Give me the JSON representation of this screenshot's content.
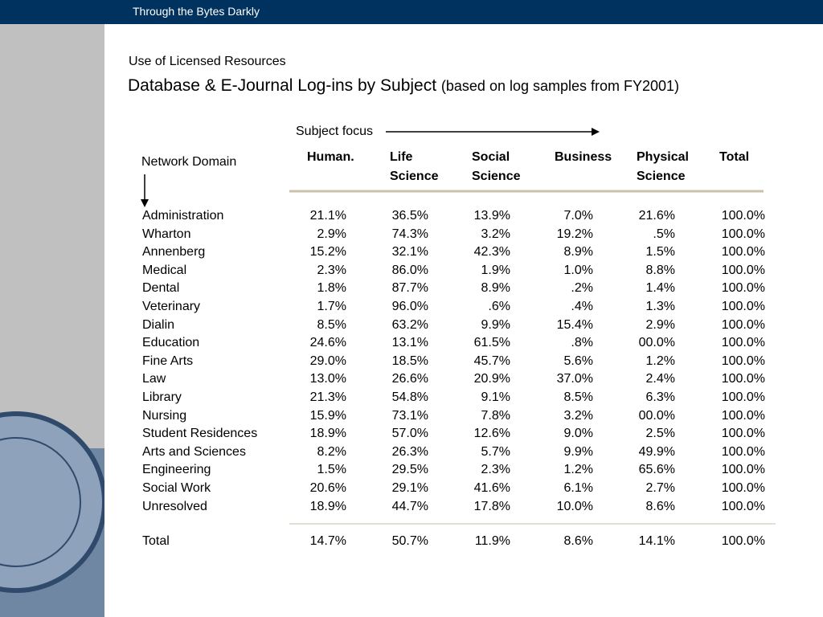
{
  "header": {
    "title": "Through the Bytes Darkly"
  },
  "slide": {
    "kicker": "Use of Licensed Resources",
    "title": "Database & E-Journal Log-ins by Subject",
    "title_note": "(based on log samples from FY2001)",
    "column_axis": "Subject focus",
    "row_axis": "Network Domain"
  },
  "table": {
    "columns": [
      [
        "Human."
      ],
      [
        "Life",
        "Science"
      ],
      [
        "Social",
        "Science"
      ],
      [
        "Business"
      ],
      [
        "Physical",
        "Science"
      ],
      [
        "Total"
      ]
    ],
    "rows": [
      [
        "Administration",
        "21.1%",
        "36.5%",
        "13.9%",
        "7.0%",
        "21.6%",
        "100.0%"
      ],
      [
        "Wharton",
        "2.9%",
        "74.3%",
        "3.2%",
        "19.2%",
        ".5%",
        "100.0%"
      ],
      [
        "Annenberg",
        "15.2%",
        "32.1%",
        "42.3%",
        "8.9%",
        "1.5%",
        "100.0%"
      ],
      [
        "Medical",
        "2.3%",
        "86.0%",
        "1.9%",
        "1.0%",
        "8.8%",
        "100.0%"
      ],
      [
        "Dental",
        "1.8%",
        "87.7%",
        "8.9%",
        ".2%",
        "1.4%",
        "100.0%"
      ],
      [
        "Veterinary",
        "1.7%",
        "96.0%",
        ".6%",
        ".4%",
        "1.3%",
        "100.0%"
      ],
      [
        "Dialin",
        "8.5%",
        "63.2%",
        "9.9%",
        "15.4%",
        "2.9%",
        "100.0%"
      ],
      [
        "Education",
        "24.6%",
        "13.1%",
        "61.5%",
        ".8%",
        "00.0%",
        "100.0%"
      ],
      [
        "Fine Arts",
        "29.0%",
        "18.5%",
        "45.7%",
        "5.6%",
        "1.2%",
        "100.0%"
      ],
      [
        "Law",
        "13.0%",
        "26.6%",
        "20.9%",
        "37.0%",
        "2.4%",
        "100.0%"
      ],
      [
        "Library",
        "21.3%",
        "54.8%",
        "9.1%",
        "8.5%",
        "6.3%",
        "100.0%"
      ],
      [
        "Nursing",
        "15.9%",
        "73.1%",
        "7.8%",
        "3.2%",
        "00.0%",
        "100.0%"
      ],
      [
        "Student Residences",
        "18.9%",
        "57.0%",
        "12.6%",
        "9.0%",
        "2.5%",
        "100.0%"
      ],
      [
        "Arts and Sciences",
        "8.2%",
        "26.3%",
        "5.7%",
        "9.9%",
        "49.9%",
        "100.0%"
      ],
      [
        "Engineering",
        "1.5%",
        "29.5%",
        "2.3%",
        "1.2%",
        "65.6%",
        "100.0%"
      ],
      [
        "Social Work",
        "20.6%",
        "29.1%",
        "41.6%",
        "6.1%",
        "2.7%",
        "100.0%"
      ],
      [
        "Unresolved",
        "18.9%",
        "44.7%",
        "17.8%",
        "10.0%",
        "8.6%",
        "100.0%"
      ]
    ],
    "total": [
      "Total",
      "14.7%",
      "50.7%",
      "11.9%",
      "8.6%",
      "14.1%",
      "100.0%"
    ]
  }
}
